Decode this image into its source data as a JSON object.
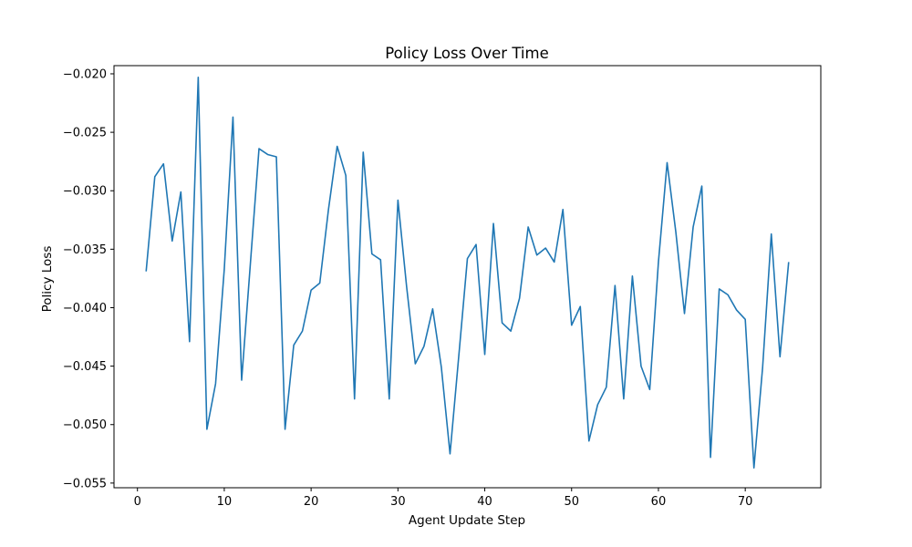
{
  "chart_data": {
    "type": "line",
    "title": "Policy Loss Over Time",
    "xlabel": "Agent Update Step",
    "ylabel": "Policy Loss",
    "xlim": [
      -2.7,
      78.7
    ],
    "ylim": [
      -0.0554,
      -0.0193
    ],
    "xticks": [
      0,
      10,
      20,
      30,
      40,
      50,
      60,
      70
    ],
    "xtick_labels": [
      "0",
      "10",
      "20",
      "30",
      "40",
      "50",
      "60",
      "70"
    ],
    "yticks": [
      -0.055,
      -0.05,
      -0.045,
      -0.04,
      -0.035,
      -0.03,
      -0.025,
      -0.02
    ],
    "ytick_labels": [
      "−0.055",
      "−0.050",
      "−0.045",
      "−0.040",
      "−0.035",
      "−0.030",
      "−0.025",
      "−0.020"
    ],
    "grid": false,
    "series": [
      {
        "color": "#1f77b4",
        "x": [
          1,
          2,
          3,
          4,
          5,
          6,
          7,
          8,
          9,
          10,
          11,
          12,
          13,
          14,
          15,
          16,
          17,
          18,
          19,
          20,
          21,
          22,
          23,
          24,
          25,
          26,
          27,
          28,
          29,
          30,
          31,
          32,
          33,
          34,
          35,
          36,
          37,
          38,
          39,
          40,
          41,
          42,
          43,
          44,
          45,
          46,
          47,
          48,
          49,
          50,
          51,
          52,
          53,
          54,
          55,
          56,
          57,
          58,
          59,
          60,
          61,
          62,
          63,
          64,
          65,
          66,
          67,
          68,
          69,
          70,
          71,
          72,
          73,
          74,
          75
        ],
        "y": [
          -0.0369,
          -0.0288,
          -0.0277,
          -0.0343,
          -0.0301,
          -0.0429,
          -0.0203,
          -0.0504,
          -0.0465,
          -0.0367,
          -0.0237,
          -0.0462,
          -0.0363,
          -0.0264,
          -0.0269,
          -0.0271,
          -0.0504,
          -0.0432,
          -0.042,
          -0.0385,
          -0.0379,
          -0.0316,
          -0.0262,
          -0.0287,
          -0.0478,
          -0.0267,
          -0.0354,
          -0.0359,
          -0.0478,
          -0.0308,
          -0.0382,
          -0.0448,
          -0.0433,
          -0.0401,
          -0.0451,
          -0.0525,
          -0.0442,
          -0.0358,
          -0.0346,
          -0.044,
          -0.0328,
          -0.0413,
          -0.042,
          -0.0392,
          -0.0331,
          -0.0355,
          -0.0349,
          -0.0361,
          -0.0316,
          -0.0415,
          -0.0399,
          -0.0514,
          -0.0483,
          -0.0468,
          -0.0381,
          -0.0478,
          -0.0373,
          -0.045,
          -0.047,
          -0.0361,
          -0.0276,
          -0.0335,
          -0.0405,
          -0.0331,
          -0.0296,
          -0.0528,
          -0.0384,
          -0.0389,
          -0.0402,
          -0.041,
          -0.0537,
          -0.0451,
          -0.0337,
          -0.0442,
          -0.0361
        ]
      }
    ]
  }
}
